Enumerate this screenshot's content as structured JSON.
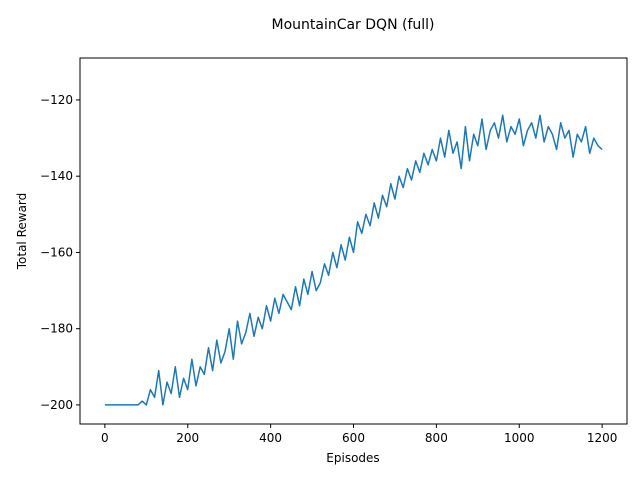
{
  "chart_data": {
    "type": "line",
    "title": "MountainCar DQN (full)",
    "xlabel": "Episodes",
    "ylabel": "Total Reward",
    "xlim": [
      -60,
      1260
    ],
    "ylim": [
      -205,
      -109
    ],
    "xticks": [
      0,
      200,
      400,
      600,
      800,
      1000,
      1200
    ],
    "yticks": [
      -200,
      -180,
      -160,
      -140,
      -120
    ],
    "ytick_labels": [
      "−200",
      "−180",
      "−160",
      "−140",
      "−120"
    ],
    "grid": false,
    "line_color": "#1f77b4",
    "series": [
      {
        "x": [
          0,
          80,
          90,
          100,
          110,
          120,
          130,
          140,
          150,
          160,
          170,
          180,
          190,
          200,
          210,
          220,
          230,
          240,
          250,
          260,
          270,
          280,
          290,
          300,
          310,
          320,
          330,
          340,
          350,
          360,
          370,
          380,
          390,
          400,
          410,
          420,
          430,
          440,
          450,
          460,
          470,
          480,
          490,
          500,
          510,
          520,
          530,
          540,
          550,
          560,
          570,
          580,
          590,
          600,
          610,
          620,
          630,
          640,
          650,
          660,
          670,
          680,
          690,
          700,
          710,
          720,
          730,
          740,
          750,
          760,
          770,
          780,
          790,
          800,
          810,
          820,
          830,
          840,
          850,
          860,
          870,
          880,
          890,
          900,
          910,
          920,
          930,
          940,
          950,
          960,
          970,
          980,
          990,
          1000,
          1010,
          1020,
          1030,
          1040,
          1050,
          1060,
          1070,
          1080,
          1090,
          1100,
          1110,
          1120,
          1130,
          1140,
          1150,
          1160,
          1170,
          1180,
          1190,
          1200
        ],
        "y": [
          -200,
          -200,
          -199,
          -200,
          -196,
          -198,
          -191,
          -200,
          -194,
          -197,
          -190,
          -198,
          -193,
          -196,
          -188,
          -195,
          -190,
          -192,
          -185,
          -191,
          -183,
          -189,
          -186,
          -180,
          -188,
          -178,
          -184,
          -181,
          -176,
          -182,
          -177,
          -180,
          -174,
          -178,
          -172,
          -176,
          -171,
          -173,
          -175,
          -169,
          -174,
          -167,
          -171,
          -165,
          -170,
          -168,
          -163,
          -166,
          -160,
          -164,
          -158,
          -162,
          -156,
          -160,
          -152,
          -155,
          -150,
          -153,
          -147,
          -151,
          -145,
          -148,
          -142,
          -146,
          -140,
          -143,
          -138,
          -141,
          -136,
          -139,
          -134,
          -137,
          -133,
          -136,
          -130,
          -135,
          -128,
          -134,
          -131,
          -138,
          -127,
          -136,
          -129,
          -132,
          -125,
          -133,
          -128,
          -126,
          -130,
          -124,
          -131,
          -127,
          -129,
          -125,
          -132,
          -128,
          -126,
          -130,
          -124,
          -131,
          -127,
          -129,
          -133,
          -126,
          -130,
          -128,
          -135,
          -129,
          -131,
          -127,
          -134,
          -130,
          -132,
          -133
        ]
      }
    ]
  }
}
